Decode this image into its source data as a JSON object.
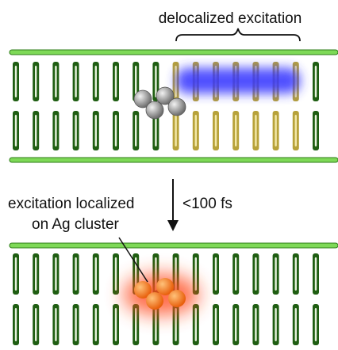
{
  "annotations": {
    "delocalized": "delocalized excitation",
    "timescale": "<100 fs",
    "localized_line1": "excitation localized",
    "localized_line2": "on Ag cluster"
  }
}
